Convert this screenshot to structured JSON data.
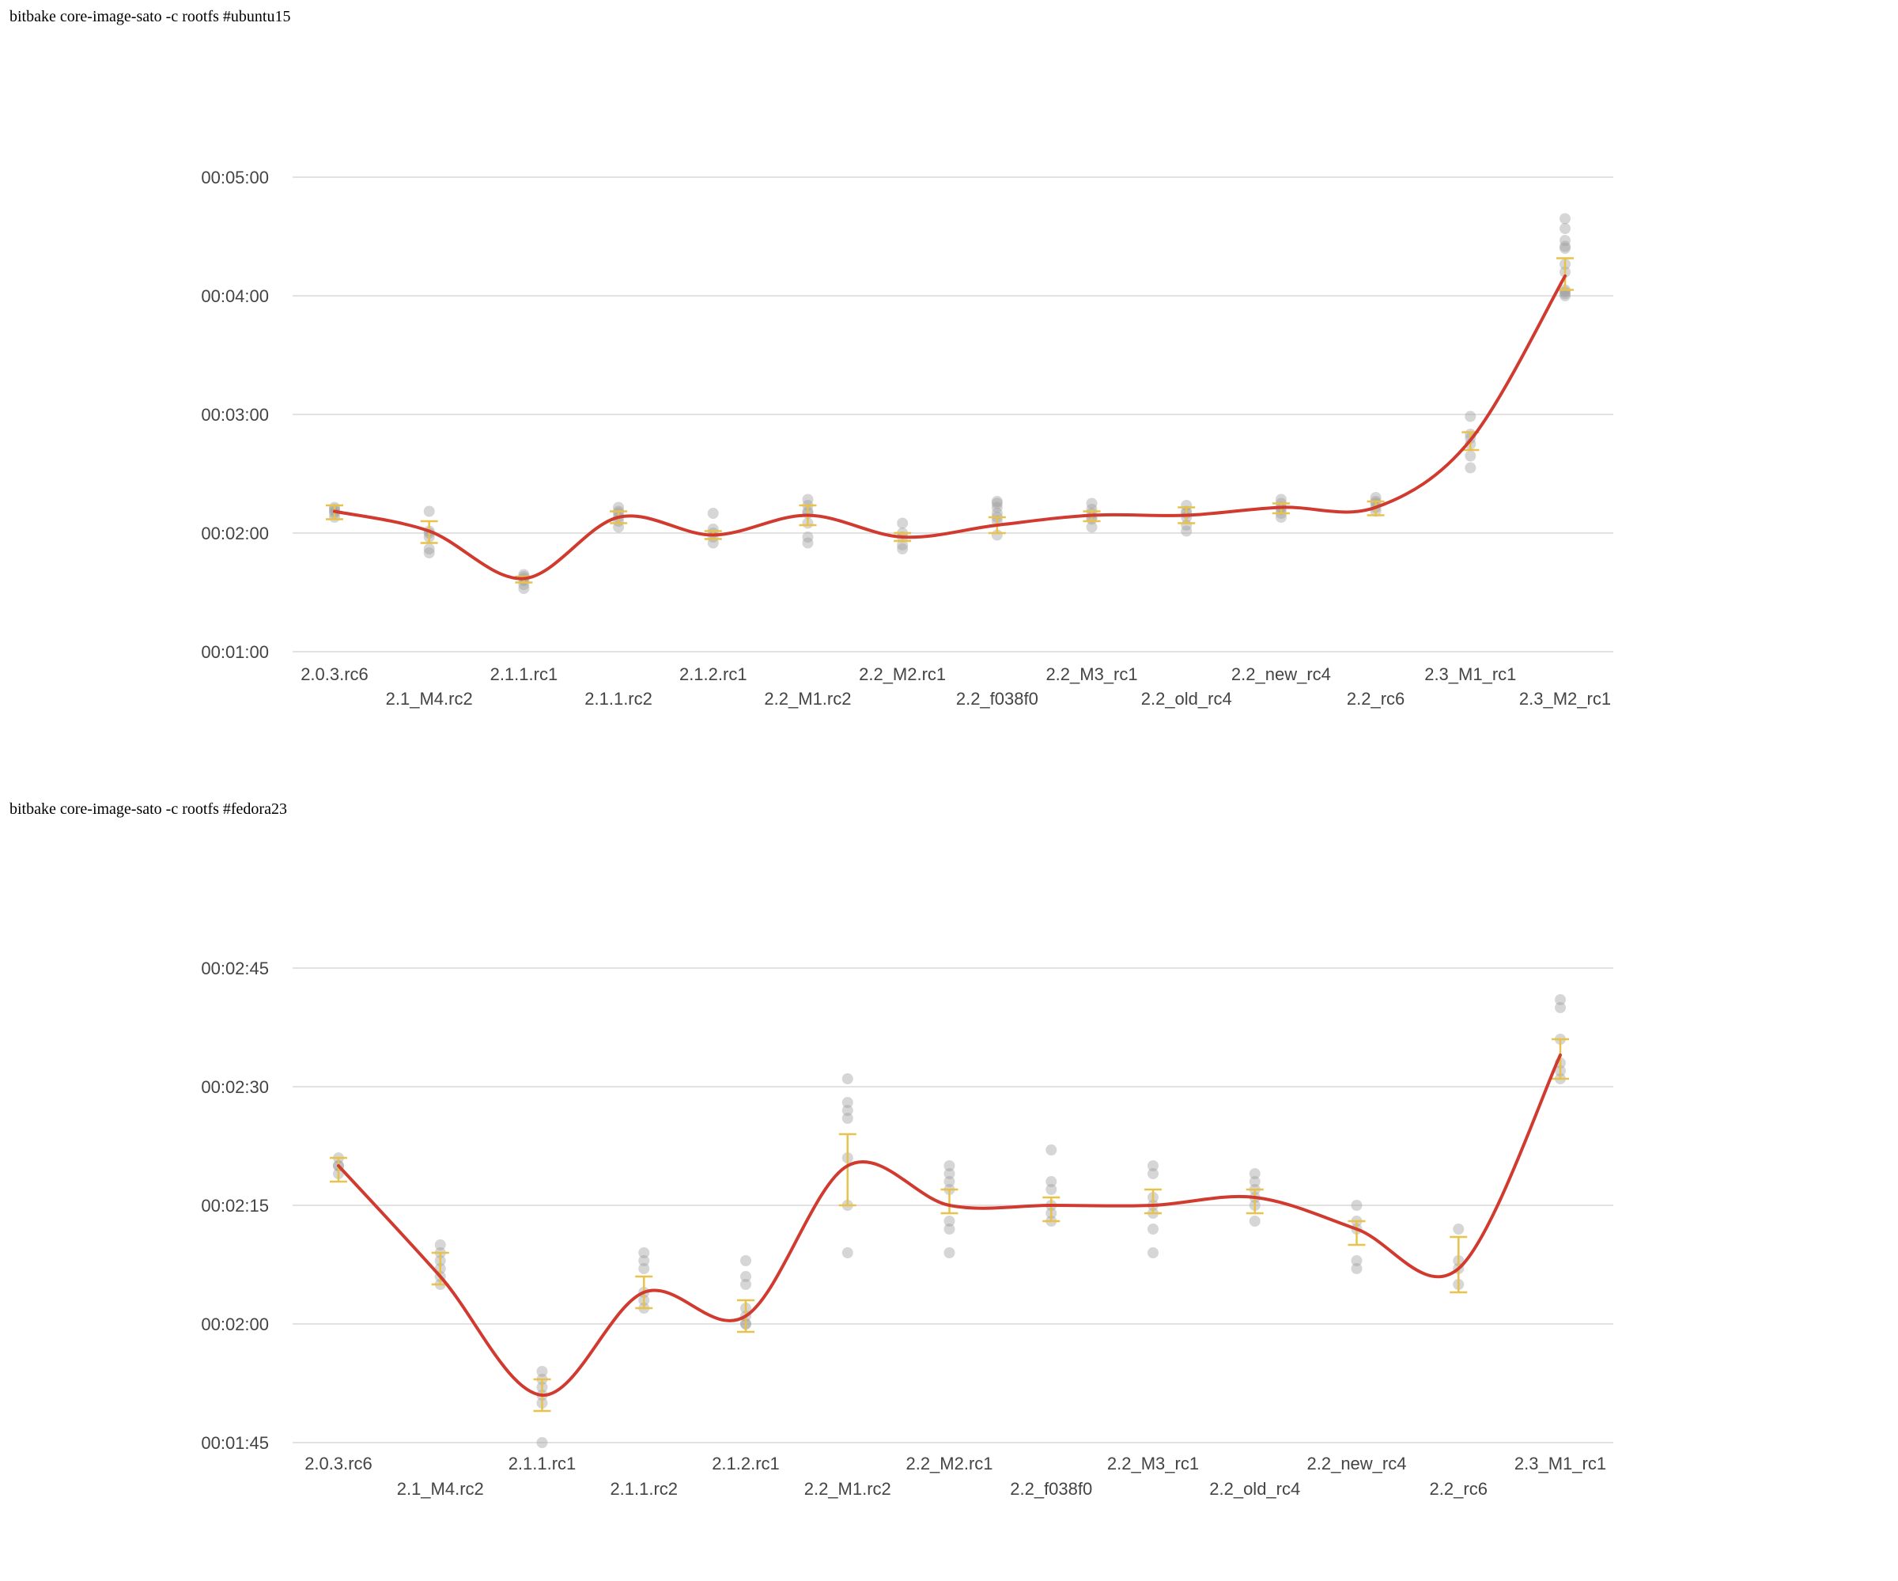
{
  "sections": [
    {
      "title": "bitbake core-image-sato -c rootfs #ubuntu15"
    },
    {
      "title": "bitbake core-image-sato -c rootfs #fedora23"
    }
  ],
  "colors": {
    "line": "#d03a2f",
    "errorbar": "#e8c24a",
    "point": "#9e9e9e",
    "grid": "#d9d9d9",
    "tick": "#444444"
  },
  "chart_data": [
    {
      "type": "line",
      "title": "",
      "xlabel": "",
      "ylabel": "",
      "y_unit": "seconds",
      "ylim": [
        60,
        300
      ],
      "yticks": [
        60,
        120,
        180,
        240,
        300
      ],
      "ytick_labels": [
        "00:01:00",
        "00:02:00",
        "00:03:00",
        "00:04:00",
        "00:05:00"
      ],
      "grid": true,
      "categories": [
        "2.0.3.rc6",
        "2.1_M4.rc2",
        "2.1.1.rc1",
        "2.1.1.rc2",
        "2.1.2.rc1",
        "2.2_M1.rc2",
        "2.2_M2.rc1",
        "2.2_f038f0",
        "2.2_M3_rc1",
        "2.2_old_rc4",
        "2.2_new_rc4",
        "2.2_rc6",
        "2.3_M1_rc1",
        "2.3_M2_rc1"
      ],
      "series": [
        {
          "type": "line",
          "values": [
            131,
            121,
            97,
            128,
            119,
            129,
            118,
            124,
            129,
            129,
            133,
            133,
            167,
            250
          ]
        },
        {
          "type": "errorbar",
          "ranges": [
            [
              127,
              134
            ],
            [
              115,
              126
            ],
            [
              95,
              98
            ],
            [
              125,
              131
            ],
            [
              117,
              121
            ],
            [
              124,
              134
            ],
            [
              116,
              120
            ],
            [
              120,
              128
            ],
            [
              126,
              131
            ],
            [
              125,
              133
            ],
            [
              130,
              135
            ],
            [
              129,
              136
            ],
            [
              162,
              171
            ],
            [
              243,
              259
            ]
          ]
        },
        {
          "type": "scatter",
          "points": [
            [
              131,
              130,
              132,
              128,
              133
            ],
            [
              110,
              112,
              118,
              121,
              131,
              120
            ],
            [
              92,
              94,
              96,
              97,
              98,
              99
            ],
            [
              123,
              126,
              128,
              130,
              133,
              131
            ],
            [
              115,
              118,
              120,
              122,
              130
            ],
            [
              115,
              118,
              125,
              131,
              137,
              134,
              130
            ],
            [
              112,
              114,
              118,
              120,
              125
            ],
            [
              119,
              126,
              130,
              133,
              135,
              136,
              128
            ],
            [
              123,
              127,
              130,
              132,
              135,
              128
            ],
            [
              121,
              124,
              128,
              131,
              134,
              130
            ],
            [
              128,
              130,
              133,
              135,
              137,
              132
            ],
            [
              131,
              133,
              135,
              138,
              136
            ],
            [
              153,
              159,
              165,
              168,
              170,
              179
            ],
            [
              240,
              241,
              242,
              243,
              252,
              256,
              265,
              268,
              279,
              274,
              264
            ]
          ]
        }
      ]
    },
    {
      "type": "line",
      "title": "",
      "xlabel": "",
      "ylabel": "",
      "y_unit": "seconds",
      "ylim": [
        105,
        165
      ],
      "yticks": [
        105,
        120,
        135,
        150,
        165
      ],
      "ytick_labels": [
        "00:01:45",
        "00:02:00",
        "00:02:15",
        "00:02:30",
        "00:02:45"
      ],
      "grid": true,
      "categories": [
        "2.0.3.rc6",
        "2.1_M4.rc2",
        "2.1.1.rc1",
        "2.1.1.rc2",
        "2.1.2.rc1",
        "2.2_M1.rc2",
        "2.2_M2.rc1",
        "2.2_f038f0",
        "2.2_M3_rc1",
        "2.2_old_rc4",
        "2.2_new_rc4",
        "2.2_rc6",
        "2.3_M1_rc1"
      ],
      "series": [
        {
          "type": "line",
          "values": [
            140,
            126,
            111,
            124,
            121,
            140,
            135,
            135,
            135,
            136,
            132,
            127,
            154
          ]
        },
        {
          "type": "errorbar",
          "ranges": [
            [
              138,
              141
            ],
            [
              125,
              129
            ],
            [
              109,
              113
            ],
            [
              122,
              126
            ],
            [
              119,
              123
            ],
            [
              135,
              144
            ],
            [
              134,
              137
            ],
            [
              133,
              136
            ],
            [
              134,
              137
            ],
            [
              134,
              137
            ],
            [
              130,
              133
            ],
            [
              124,
              131
            ],
            [
              151,
              156
            ]
          ]
        },
        {
          "type": "scatter",
          "points": [
            [
              140,
              141,
              139,
              140
            ],
            [
              125,
              126,
              127,
              128,
              130,
              129
            ],
            [
              105,
              110,
              111,
              112,
              113,
              114
            ],
            [
              122,
              123,
              124,
              127,
              128,
              129
            ],
            [
              120,
              121,
              122,
              125,
              126,
              128,
              120
            ],
            [
              129,
              135,
              141,
              146,
              147,
              148,
              151
            ],
            [
              129,
              132,
              133,
              137,
              138,
              139,
              140
            ],
            [
              133,
              134,
              135,
              137,
              138,
              142
            ],
            [
              129,
              132,
              134,
              135,
              136,
              139,
              140
            ],
            [
              133,
              135,
              136,
              137,
              138,
              139
            ],
            [
              127,
              128,
              132,
              133,
              135
            ],
            [
              125,
              127,
              128,
              132
            ],
            [
              151,
              152,
              153,
              156,
              160,
              161
            ]
          ]
        }
      ]
    }
  ]
}
